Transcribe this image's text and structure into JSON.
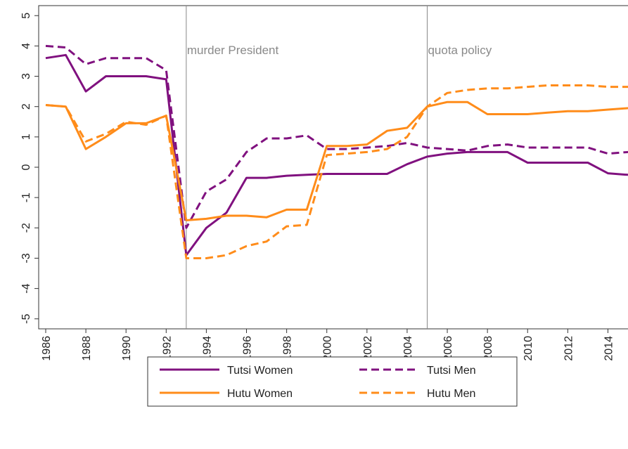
{
  "chart_data": {
    "type": "line",
    "x": [
      1986,
      1987,
      1988,
      1989,
      1990,
      1991,
      1992,
      1993,
      1994,
      1995,
      1996,
      1997,
      1998,
      1999,
      2000,
      2001,
      2002,
      2003,
      2004,
      2005,
      2006,
      2007,
      2008,
      2009,
      2010,
      2011,
      2012,
      2013,
      2014,
      2015
    ],
    "series": [
      {
        "name": "Tutsi Women",
        "color": "#80117f",
        "dash": false,
        "values": [
          3.6,
          3.7,
          2.5,
          3.0,
          3.0,
          3.0,
          2.9,
          -2.9,
          -2.0,
          -1.5,
          -0.35,
          -0.35,
          -0.28,
          -0.25,
          -0.22,
          -0.22,
          -0.22,
          -0.22,
          0.1,
          0.35,
          0.45,
          0.5,
          0.5,
          0.5,
          0.15,
          0.15,
          0.15,
          0.15,
          -0.2,
          -0.25
        ]
      },
      {
        "name": "Tutsi Men",
        "color": "#80117f",
        "dash": true,
        "values": [
          4.0,
          3.95,
          3.4,
          3.6,
          3.6,
          3.6,
          3.2,
          -2.0,
          -0.8,
          -0.4,
          0.5,
          0.95,
          0.95,
          1.05,
          0.6,
          0.6,
          0.65,
          0.7,
          0.8,
          0.65,
          0.6,
          0.55,
          0.7,
          0.75,
          0.65,
          0.65,
          0.65,
          0.65,
          0.45,
          0.5
        ]
      },
      {
        "name": "Hutu Women",
        "color": "#ff8c1a",
        "dash": false,
        "values": [
          2.05,
          2.0,
          0.6,
          1.0,
          1.45,
          1.45,
          1.7,
          -1.75,
          -1.7,
          -1.6,
          -1.6,
          -1.65,
          -1.4,
          -1.4,
          0.7,
          0.7,
          0.75,
          1.2,
          1.3,
          2.0,
          2.15,
          2.15,
          1.75,
          1.75,
          1.75,
          1.8,
          1.85,
          1.85,
          1.9,
          1.95
        ]
      },
      {
        "name": "Hutu Men",
        "color": "#ff8c1a",
        "dash": true,
        "values": [
          2.05,
          2.0,
          0.85,
          1.1,
          1.5,
          1.4,
          1.7,
          -3.0,
          -3.0,
          -2.9,
          -2.6,
          -2.45,
          -1.95,
          -1.9,
          0.4,
          0.45,
          0.5,
          0.6,
          1.0,
          2.0,
          2.45,
          2.55,
          2.6,
          2.6,
          2.65,
          2.7,
          2.7,
          2.7,
          2.65,
          2.65
        ]
      }
    ],
    "annotations": [
      {
        "x": 1993,
        "text": "murder President"
      },
      {
        "x": 2005,
        "text": "quota policy"
      }
    ],
    "xlim": [
      1985.65,
      2015
    ],
    "xticks": [
      1986,
      1988,
      1990,
      1992,
      1994,
      1996,
      1998,
      2000,
      2002,
      2004,
      2006,
      2008,
      2010,
      2012,
      2014
    ],
    "ylim": [
      -5.33,
      5.33
    ],
    "yticks": [
      -5,
      -4,
      -3,
      -2,
      -1,
      0,
      1,
      2,
      3,
      4,
      5
    ],
    "legend": "bottom"
  }
}
